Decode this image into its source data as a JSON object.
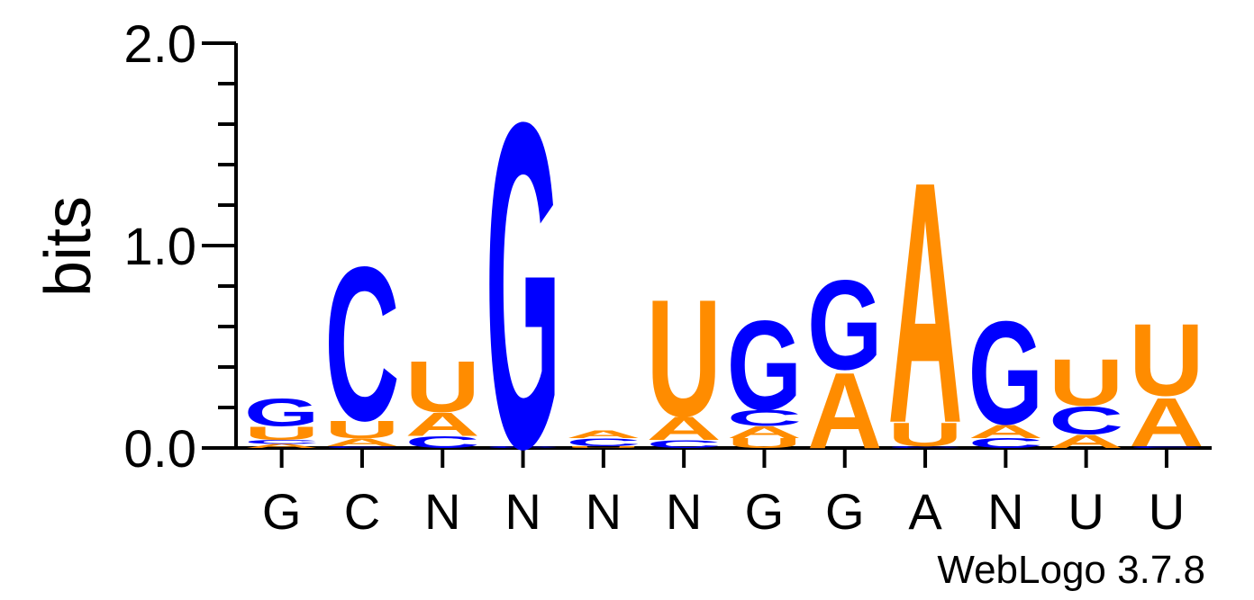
{
  "chart_data": {
    "type": "sequence-logo",
    "ylabel": "bits",
    "ylim": [
      0,
      2.0
    ],
    "yticks": [
      {
        "value": 0,
        "label": "0.0"
      },
      {
        "value": 1,
        "label": "1.0"
      },
      {
        "value": 2,
        "label": "2.0"
      }
    ],
    "ytick_minor_step": 0.2,
    "x_labels": [
      "G",
      "C",
      "N",
      "N",
      "N",
      "N",
      "G",
      "G",
      "A",
      "N",
      "U",
      "U"
    ],
    "colors": {
      "G": "#0000ff",
      "C": "#0000ff",
      "A": "#ff8c00",
      "U": "#ff8c00"
    },
    "positions": [
      [
        {
          "l": "A",
          "h": 0.02
        },
        {
          "l": "C",
          "h": 0.02
        },
        {
          "l": "U",
          "h": 0.07
        },
        {
          "l": "G",
          "h": 0.14
        }
      ],
      [
        {
          "l": "C",
          "h": 0.01
        },
        {
          "l": "A",
          "h": 0.04
        },
        {
          "l": "U",
          "h": 0.09
        },
        {
          "l": "C",
          "h": 0.79
        }
      ],
      [
        {
          "l": "C",
          "h": 0.06
        },
        {
          "l": "A",
          "h": 0.12
        },
        {
          "l": "U",
          "h": 0.26
        }
      ],
      [
        {
          "l": "C",
          "h": 0.01
        },
        {
          "l": "G",
          "h": 1.67
        }
      ],
      [
        {
          "l": "U",
          "h": 0.01
        },
        {
          "l": "C",
          "h": 0.04
        },
        {
          "l": "A",
          "h": 0.04
        }
      ],
      [
        {
          "l": "C",
          "h": 0.04
        },
        {
          "l": "A",
          "h": 0.12
        },
        {
          "l": "U",
          "h": 0.6
        }
      ],
      [
        {
          "l": "U",
          "h": 0.05
        },
        {
          "l": "A",
          "h": 0.06
        },
        {
          "l": "C",
          "h": 0.08
        },
        {
          "l": "G",
          "h": 0.46
        }
      ],
      [
        {
          "l": "A",
          "h": 0.39
        },
        {
          "l": "G",
          "h": 0.46
        }
      ],
      [
        {
          "l": "C",
          "h": 0.01
        },
        {
          "l": "U",
          "h": 0.12
        },
        {
          "l": "A",
          "h": 1.24
        }
      ],
      [
        {
          "l": "C",
          "h": 0.05
        },
        {
          "l": "A",
          "h": 0.07
        },
        {
          "l": "G",
          "h": 0.53
        }
      ],
      [
        {
          "l": "A",
          "h": 0.07
        },
        {
          "l": "C",
          "h": 0.14
        },
        {
          "l": "U",
          "h": 0.24
        }
      ],
      [
        {
          "l": "C",
          "h": 0.01
        },
        {
          "l": "A",
          "h": 0.25
        },
        {
          "l": "U",
          "h": 0.37
        }
      ]
    ]
  },
  "credit": "WebLogo 3.7.8"
}
